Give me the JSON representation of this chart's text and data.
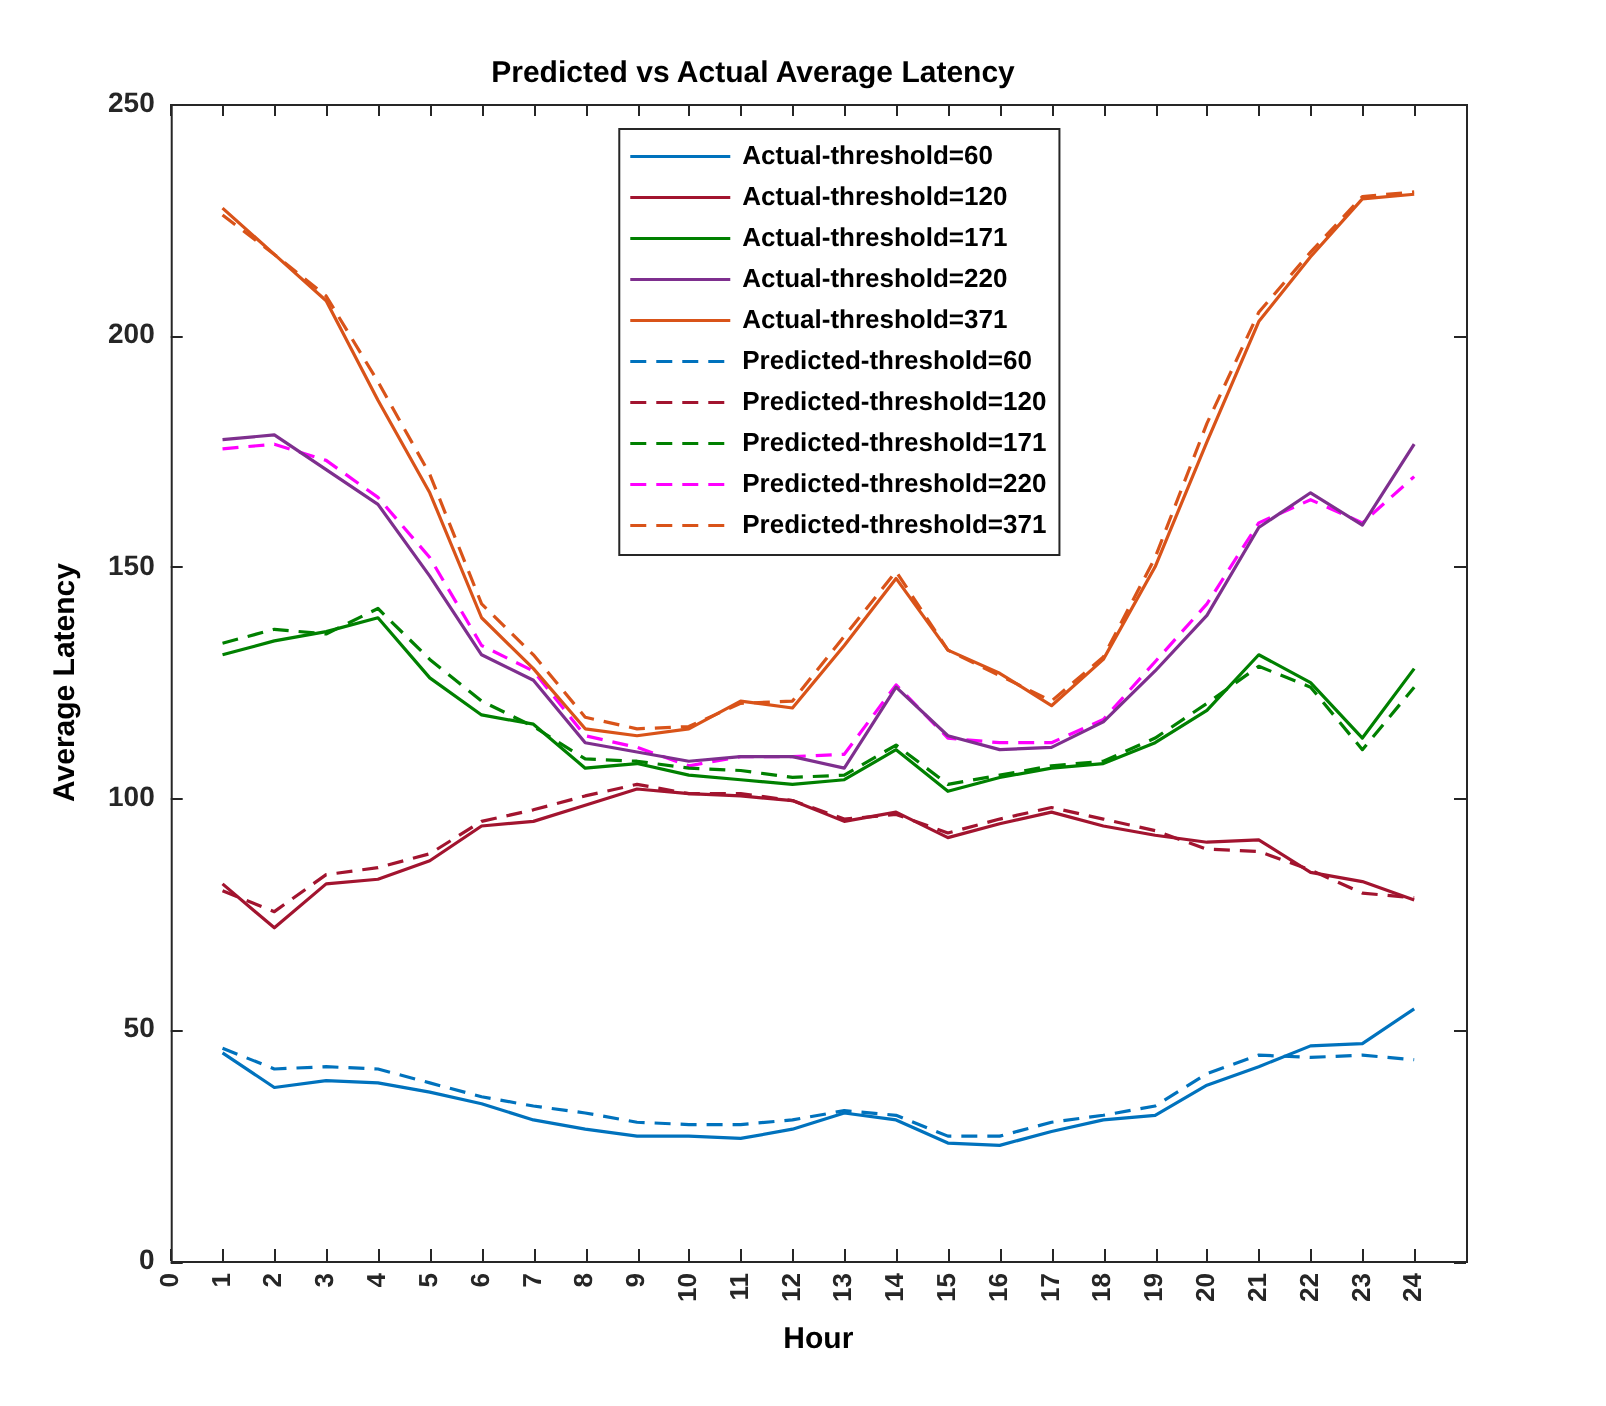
{
  "chart_data": {
    "type": "line",
    "title": "Predicted vs Actual Average Latency",
    "xlabel": "Hour",
    "ylabel": "Average Latency",
    "x": [
      1,
      2,
      3,
      4,
      5,
      6,
      7,
      8,
      9,
      10,
      11,
      12,
      13,
      14,
      15,
      16,
      17,
      18,
      19,
      20,
      21,
      22,
      23,
      24
    ],
    "xlim": [
      0,
      25
    ],
    "xticks": [
      0,
      1,
      2,
      3,
      4,
      5,
      6,
      7,
      8,
      9,
      10,
      11,
      12,
      13,
      14,
      15,
      16,
      17,
      18,
      19,
      20,
      21,
      22,
      23,
      24
    ],
    "ylim": [
      0,
      250
    ],
    "yticks": [
      0,
      50,
      100,
      150,
      200,
      250
    ],
    "grid": false,
    "legend": "top",
    "marker": "none",
    "series": [
      {
        "name": "Actual-threshold=60",
        "color": "#0072bd",
        "line_style": "solid",
        "values": [
          45,
          37.5,
          39,
          38.5,
          36.5,
          34,
          30.5,
          28.5,
          27,
          27,
          26.5,
          28.5,
          32,
          30.5,
          25.5,
          25,
          28,
          30.5,
          31.5,
          38,
          42,
          46.5,
          47,
          54.5
        ]
      },
      {
        "name": "Actual-threshold=120",
        "color": "#a2142f",
        "line_style": "solid",
        "values": [
          81.5,
          72,
          81.5,
          82.5,
          86.5,
          94,
          95,
          98.5,
          102,
          101,
          100.5,
          99.5,
          95,
          97,
          91.5,
          94.5,
          97,
          94,
          92,
          90.5,
          91,
          84,
          82,
          78
        ]
      },
      {
        "name": "Actual-threshold=171",
        "color": "#008000",
        "line_style": "solid",
        "values": [
          131,
          134,
          136,
          139,
          126,
          118,
          116,
          106.5,
          107.5,
          105,
          104,
          103,
          104,
          110.5,
          101.5,
          104.5,
          106.5,
          107.5,
          112,
          119,
          131,
          125,
          113,
          128
        ]
      },
      {
        "name": "Actual-threshold=220",
        "color": "#7e2f8e",
        "line_style": "solid",
        "values": [
          177.5,
          178.5,
          171,
          163.5,
          148,
          131,
          125.5,
          112,
          110,
          108,
          109,
          109,
          106.5,
          124,
          113.5,
          110.5,
          111,
          116.5,
          127.5,
          139.5,
          158.5,
          166,
          159,
          176.5
        ]
      },
      {
        "name": "Actual-threshold=371",
        "color": "#d95319",
        "line_style": "solid",
        "values": [
          227.5,
          217.5,
          207.5,
          186,
          166,
          139,
          128,
          115,
          113.5,
          115,
          121,
          119.5,
          133,
          147.5,
          132,
          127,
          120,
          130,
          150,
          177,
          203,
          217,
          229.5,
          230.5
        ]
      },
      {
        "name": "Predicted-threshold=60",
        "color": "#0072bd",
        "line_style": "dashed",
        "values": [
          46,
          41.5,
          42,
          41.5,
          38.5,
          35.5,
          33.5,
          32,
          30,
          29.5,
          29.5,
          30.5,
          32.5,
          31.5,
          27,
          27,
          30,
          31.5,
          33.5,
          40.5,
          44.5,
          44,
          44.5,
          43.5
        ]
      },
      {
        "name": "Predicted-threshold=120",
        "color": "#a2142f",
        "line_style": "dashed",
        "values": [
          80,
          75.5,
          83.5,
          85,
          88,
          95,
          97.5,
          100.5,
          103,
          101,
          101,
          99.5,
          95.5,
          96.5,
          92.5,
          95.5,
          98,
          95.5,
          93,
          89,
          88.5,
          84.5,
          79.5,
          78.5
        ]
      },
      {
        "name": "Predicted-threshold=171",
        "color": "#008000",
        "line_style": "dashed",
        "values": [
          133.5,
          136.5,
          135.5,
          141,
          130,
          121,
          115.5,
          108.5,
          108,
          106.5,
          106,
          104.5,
          105,
          111.5,
          103,
          105,
          107,
          108,
          113,
          120.5,
          128.5,
          124,
          110.5,
          124
        ]
      },
      {
        "name": "Predicted-threshold=220",
        "color": "#ff00ff",
        "line_style": "dashed",
        "values": [
          175.5,
          176.5,
          173,
          165,
          152,
          133,
          127.5,
          113.5,
          111,
          107,
          109,
          109,
          109.5,
          124.5,
          113,
          112,
          112,
          117,
          129.5,
          142,
          159.5,
          164.5,
          159.5,
          169.5
        ]
      },
      {
        "name": "Predicted-threshold=371",
        "color": "#d95319",
        "line_style": "dashed",
        "values": [
          226,
          217.5,
          208.5,
          190,
          170,
          142,
          131,
          117.5,
          115,
          115.5,
          120.5,
          121,
          135,
          149,
          132,
          126.5,
          121,
          130.5,
          152,
          181,
          205,
          218,
          230,
          231
        ]
      }
    ]
  }
}
